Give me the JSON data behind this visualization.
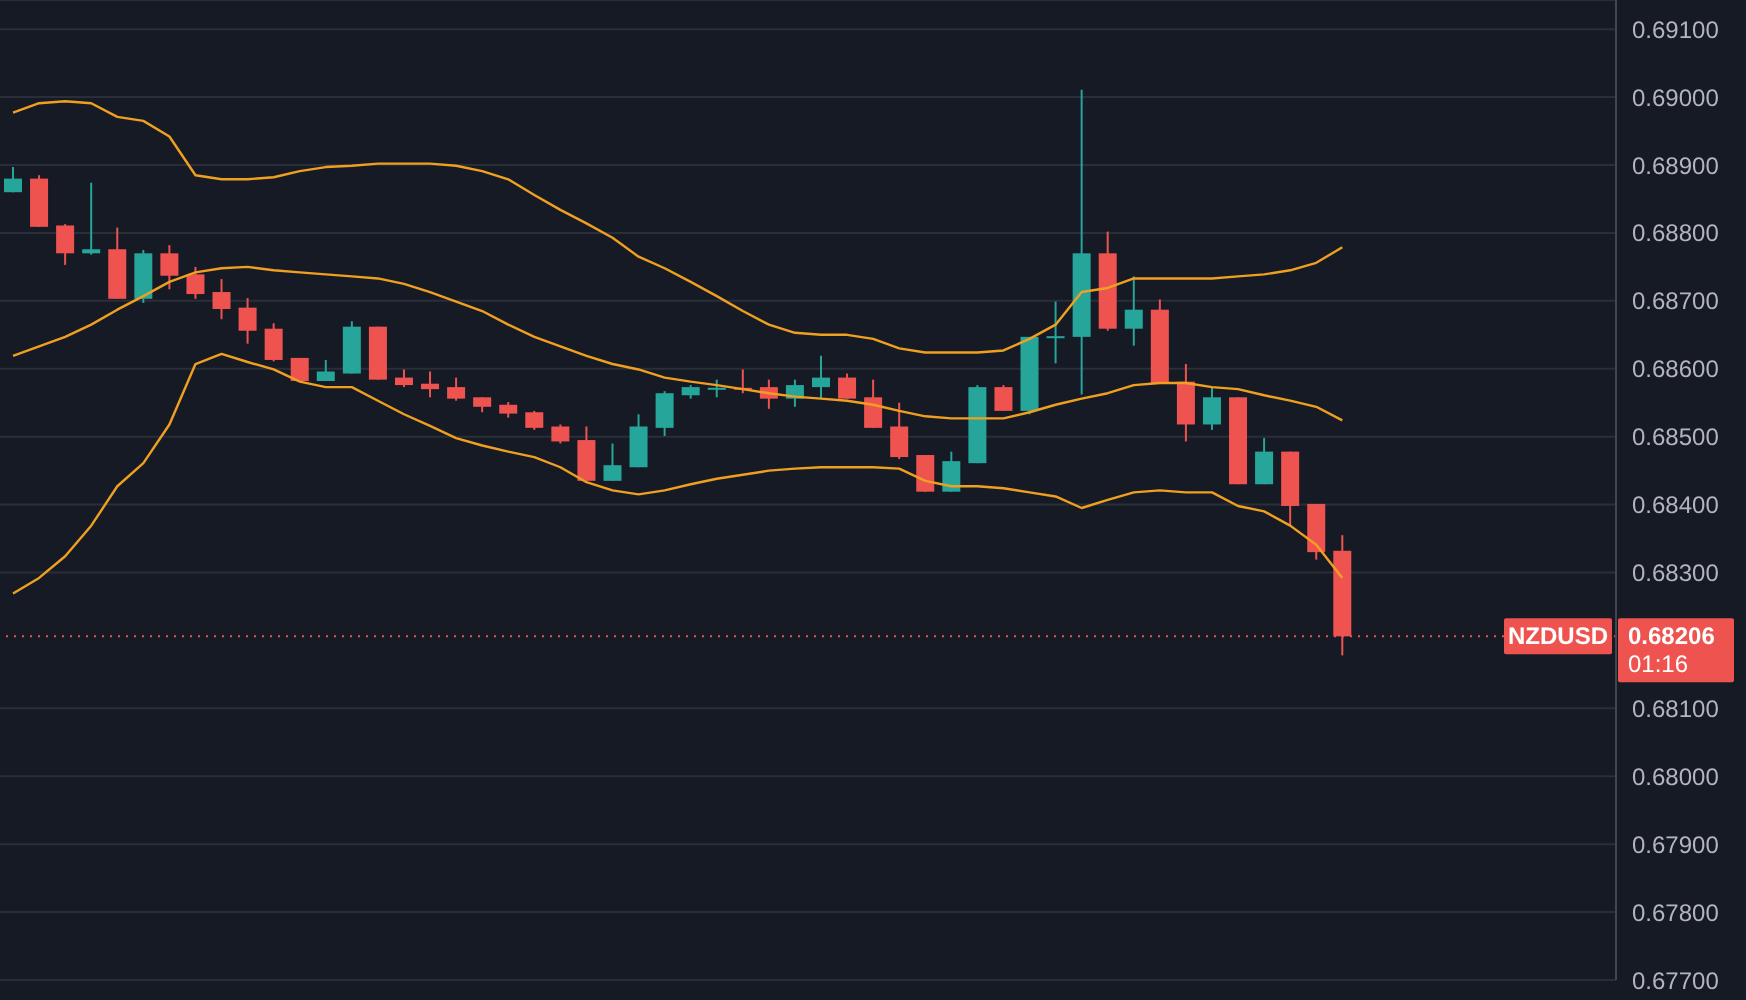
{
  "chart_data": {
    "type": "candlestick",
    "categories": [
      null,
      null,
      null,
      null,
      null,
      null,
      null,
      null,
      null,
      null,
      null,
      null,
      null,
      null,
      null,
      null,
      null,
      null,
      null,
      null,
      null,
      null,
      null,
      null,
      null,
      null,
      null,
      null,
      null,
      null,
      null,
      null,
      null,
      null,
      null,
      null,
      null,
      null,
      null,
      null,
      null,
      null,
      null,
      null,
      null,
      null,
      null,
      null,
      null,
      null,
      null,
      null
    ],
    "ohlc": [
      [
        0.6886,
        0.68897,
        0.6886,
        0.6888
      ],
      [
        0.6888,
        0.68885,
        0.68809,
        0.68809
      ],
      [
        0.68811,
        0.68813,
        0.68753,
        0.6877
      ],
      [
        0.6877,
        0.68874,
        0.68768,
        0.68776
      ],
      [
        0.68776,
        0.68808,
        0.68703,
        0.68703
      ],
      [
        0.68703,
        0.68775,
        0.68697,
        0.6877
      ],
      [
        0.6877,
        0.68782,
        0.68717,
        0.68737
      ],
      [
        0.68739,
        0.6875,
        0.68703,
        0.6871
      ],
      [
        0.68713,
        0.68732,
        0.68673,
        0.68688
      ],
      [
        0.6869,
        0.68704,
        0.68637,
        0.68656
      ],
      [
        0.68659,
        0.68667,
        0.68611,
        0.68613
      ],
      [
        0.68616,
        0.68616,
        0.68582,
        0.68582
      ],
      [
        0.68582,
        0.68613,
        0.68582,
        0.68596
      ],
      [
        0.68593,
        0.6867,
        0.68593,
        0.68662
      ],
      [
        0.68662,
        0.68662,
        0.68584,
        0.68584
      ],
      [
        0.68587,
        0.68599,
        0.68573,
        0.68576
      ],
      [
        0.68578,
        0.68596,
        0.68558,
        0.6857
      ],
      [
        0.68573,
        0.68587,
        0.68553,
        0.68556
      ],
      [
        0.68558,
        0.68558,
        0.68536,
        0.68544
      ],
      [
        0.68547,
        0.68551,
        0.68528,
        0.68534
      ],
      [
        0.68536,
        0.68538,
        0.6851,
        0.68513
      ],
      [
        0.68515,
        0.68518,
        0.6849,
        0.68493
      ],
      [
        0.68495,
        0.68515,
        0.68435,
        0.68435
      ],
      [
        0.68435,
        0.6849,
        0.68435,
        0.68458
      ],
      [
        0.68455,
        0.68533,
        0.68455,
        0.68515
      ],
      [
        0.68513,
        0.68567,
        0.68501,
        0.68564
      ],
      [
        0.68561,
        0.68576,
        0.68556,
        0.68573
      ],
      [
        0.68571,
        0.68584,
        0.68558,
        0.68572
      ],
      [
        0.68572,
        0.68599,
        0.68564,
        0.68571
      ],
      [
        0.68573,
        0.68584,
        0.68541,
        0.68556
      ],
      [
        0.68556,
        0.68584,
        0.68544,
        0.68576
      ],
      [
        0.68573,
        0.68619,
        0.68556,
        0.68587
      ],
      [
        0.68587,
        0.68593,
        0.68556,
        0.68556
      ],
      [
        0.68558,
        0.68584,
        0.68513,
        0.68513
      ],
      [
        0.68515,
        0.6855,
        0.68467,
        0.6847
      ],
      [
        0.68473,
        0.68473,
        0.68419,
        0.68419
      ],
      [
        0.68419,
        0.68478,
        0.68419,
        0.68464
      ],
      [
        0.68461,
        0.68576,
        0.68461,
        0.68573
      ],
      [
        0.68573,
        0.68576,
        0.68538,
        0.68538
      ],
      [
        0.68538,
        0.68647,
        0.68533,
        0.68647
      ],
      [
        0.68645,
        0.68699,
        0.68608,
        0.68648
      ],
      [
        0.68647,
        0.69011,
        0.68562,
        0.6877
      ],
      [
        0.6877,
        0.68802,
        0.68656,
        0.68659
      ],
      [
        0.68659,
        0.68736,
        0.68634,
        0.68687
      ],
      [
        0.68687,
        0.68702,
        0.68579,
        0.68579
      ],
      [
        0.68581,
        0.68607,
        0.68493,
        0.68518
      ],
      [
        0.68518,
        0.68573,
        0.6851,
        0.68558
      ],
      [
        0.68558,
        0.68558,
        0.6843,
        0.6843
      ],
      [
        0.6843,
        0.68498,
        0.6843,
        0.68478
      ],
      [
        0.68478,
        0.68478,
        0.68369,
        0.68398
      ],
      [
        0.68401,
        0.68401,
        0.68319,
        0.6833
      ],
      [
        0.68332,
        0.68355,
        0.68178,
        0.68206
      ]
    ],
    "colors": [
      "#26a69a",
      "#ef5350",
      "#ef5350",
      "#26a69a",
      "#ef5350",
      "#26a69a",
      "#ef5350",
      "#ef5350",
      "#ef5350",
      "#ef5350",
      "#ef5350",
      "#ef5350",
      "#26a69a",
      "#26a69a",
      "#ef5350",
      "#ef5350",
      "#ef5350",
      "#ef5350",
      "#ef5350",
      "#ef5350",
      "#ef5350",
      "#ef5350",
      "#ef5350",
      "#26a69a",
      "#26a69a",
      "#26a69a",
      "#26a69a",
      "#26a69a",
      "#ef5350",
      "#ef5350",
      "#26a69a",
      "#26a69a",
      "#ef5350",
      "#ef5350",
      "#ef5350",
      "#ef5350",
      "#26a69a",
      "#26a69a",
      "#ef5350",
      "#26a69a",
      "#26a69a",
      "#26a69a",
      "#ef5350",
      "#26a69a",
      "#ef5350",
      "#ef5350",
      "#26a69a",
      "#ef5350",
      "#26a69a",
      "#ef5350",
      "#ef5350",
      "#ef5350"
    ],
    "series": [
      {
        "type": "line",
        "color": "#f0a020",
        "values": [
          0.68977,
          0.68991,
          0.68994,
          0.68991,
          0.68971,
          0.68965,
          0.68942,
          0.68885,
          0.68879,
          0.68879,
          0.68882,
          0.68891,
          0.68897,
          0.68899,
          0.68902,
          0.68902,
          0.68902,
          0.68899,
          0.68891,
          0.68879,
          0.68856,
          0.68834,
          0.68814,
          0.68793,
          0.68765,
          0.68748,
          0.68728,
          0.68707,
          0.68685,
          0.68665,
          0.68653,
          0.6865,
          0.6865,
          0.68644,
          0.6863,
          0.68624,
          0.68624,
          0.68624,
          0.68627,
          0.68644,
          0.68665,
          0.68713,
          0.68719,
          0.68733,
          0.68733,
          0.68733,
          0.68733,
          0.68736,
          0.68739,
          0.68745,
          0.68756,
          0.68779
        ]
      },
      {
        "type": "line",
        "color": "#f0a020",
        "values": [
          0.68619,
          0.68633,
          0.68647,
          0.68665,
          0.68687,
          0.68707,
          0.68728,
          0.68742,
          0.68748,
          0.6875,
          0.68745,
          0.68742,
          0.68739,
          0.68736,
          0.68733,
          0.68725,
          0.68713,
          0.68699,
          0.68685,
          0.68665,
          0.68647,
          0.68633,
          0.68619,
          0.68607,
          0.68599,
          0.68587,
          0.68581,
          0.68576,
          0.6857,
          0.68564,
          0.68559,
          0.68556,
          0.68553,
          0.68547,
          0.68538,
          0.6853,
          0.68527,
          0.68527,
          0.68527,
          0.68536,
          0.68547,
          0.68556,
          0.68564,
          0.68576,
          0.68579,
          0.68579,
          0.68573,
          0.6857,
          0.68561,
          0.68553,
          0.68544,
          0.68524
        ]
      },
      {
        "type": "line",
        "color": "#f0a020",
        "values": [
          0.68269,
          0.68292,
          0.68324,
          0.68369,
          0.68427,
          0.68461,
          0.68518,
          0.68607,
          0.68622,
          0.6861,
          0.68599,
          0.68581,
          0.68573,
          0.68573,
          0.68553,
          0.68533,
          0.68516,
          0.68498,
          0.68487,
          0.68478,
          0.6847,
          0.68455,
          0.68433,
          0.68421,
          0.68415,
          0.68421,
          0.6843,
          0.68438,
          0.68444,
          0.6845,
          0.68453,
          0.68455,
          0.68455,
          0.68455,
          0.68453,
          0.68435,
          0.68427,
          0.68427,
          0.68424,
          0.68418,
          0.68412,
          0.68395,
          0.68407,
          0.68418,
          0.68421,
          0.68418,
          0.68418,
          0.68398,
          0.6839,
          0.68369,
          0.68341,
          0.68292
        ]
      }
    ],
    "ylim": [
      0.677,
      0.69143
    ],
    "yticks": [
      {
        "value": 0.677,
        "label": "0.67700"
      },
      {
        "value": 0.678,
        "label": "0.67800"
      },
      {
        "value": 0.679,
        "label": "0.67900"
      },
      {
        "value": 0.68,
        "label": "0.68000"
      },
      {
        "value": 0.681,
        "label": "0.68100"
      },
      {
        "value": 0.683,
        "label": "0.68300"
      },
      {
        "value": 0.684,
        "label": "0.68400"
      },
      {
        "value": 0.685,
        "label": "0.68500"
      },
      {
        "value": 0.686,
        "label": "0.68600"
      },
      {
        "value": 0.687,
        "label": "0.68700"
      },
      {
        "value": 0.688,
        "label": "0.68800"
      },
      {
        "value": 0.689,
        "label": "0.68900"
      },
      {
        "value": 0.69,
        "label": "0.69000"
      },
      {
        "value": 0.691,
        "label": "0.69100"
      }
    ],
    "ref_lines": [
      {
        "axis": "y",
        "value": 0.68206,
        "label": "NZDUSD",
        "color": "#ef5350",
        "line_style": "dotted"
      }
    ],
    "annotations": [
      "0.68206",
      "01:16"
    ],
    "grid": "y",
    "tick_labels": "y"
  }
}
